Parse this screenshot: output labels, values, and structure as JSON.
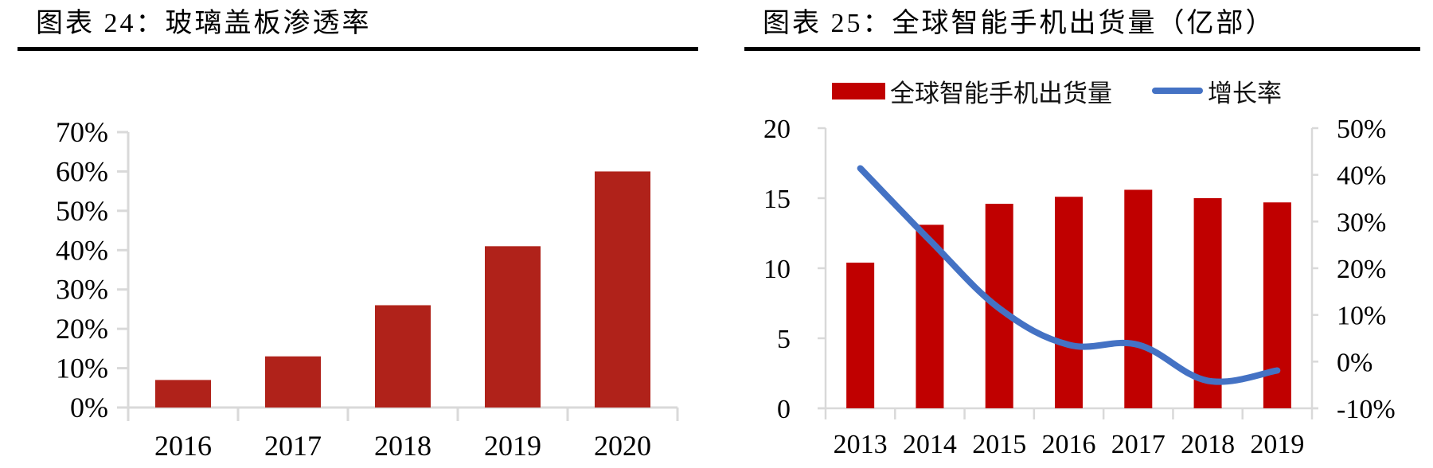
{
  "colors": {
    "left_bar": "#b0221a",
    "right_bar": "#c00000",
    "line": "#4472c4",
    "axis": "#d9d9d9",
    "text": "#000000"
  },
  "left_panel": {
    "title": "图表 24：玻璃盖板渗透率"
  },
  "right_panel": {
    "title": "图表 25：全球智能手机出货量（亿部）",
    "legend": {
      "bar_label": "全球智能手机出货量",
      "line_label": "增长率"
    }
  },
  "chart_data": [
    {
      "type": "bar",
      "title": "图表 24：玻璃盖板渗透率",
      "categories": [
        "2016",
        "2017",
        "2018",
        "2019",
        "2020"
      ],
      "values": [
        7,
        13,
        26,
        41,
        60
      ],
      "unit": "%",
      "xlabel": "",
      "ylabel": "",
      "ylim": [
        0,
        70
      ],
      "yticks": [
        "0%",
        "10%",
        "20%",
        "30%",
        "40%",
        "50%",
        "60%",
        "70%"
      ],
      "grid": false,
      "legend": null
    },
    {
      "type": "bar+line",
      "title": "图表 25：全球智能手机出货量（亿部）",
      "categories": [
        "2013",
        "2014",
        "2015",
        "2016",
        "2017",
        "2018",
        "2019"
      ],
      "series": [
        {
          "name": "全球智能手机出货量",
          "type": "bar",
          "axis": "left",
          "values": [
            10.4,
            13.1,
            14.6,
            15.1,
            15.6,
            15.0,
            14.7
          ]
        },
        {
          "name": "增长率",
          "type": "line",
          "axis": "right",
          "unit": "%",
          "values": [
            41.4,
            26.0,
            11.4,
            3.6,
            3.6,
            -4.1,
            -1.9
          ]
        }
      ],
      "ylim_left": [
        0,
        20
      ],
      "yticks_left": [
        "0",
        "5",
        "10",
        "15",
        "20"
      ],
      "ylim_right": [
        -10,
        50
      ],
      "yticks_right": [
        "-10%",
        "0%",
        "10%",
        "20%",
        "30%",
        "40%",
        "50%"
      ],
      "grid": false,
      "legend_position": "top"
    }
  ]
}
